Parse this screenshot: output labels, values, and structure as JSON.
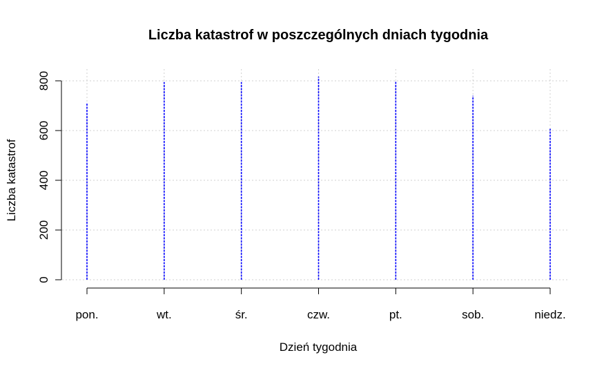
{
  "chart_data": {
    "type": "bar",
    "title": "Liczba katastrof w poszczególnych dniach tygodnia",
    "xlabel": "Dzień tygodnia",
    "ylabel": "Liczba katastrof",
    "categories": [
      "pon.",
      "wt.",
      "śr.",
      "czw.",
      "pt.",
      "sob.",
      "niedz."
    ],
    "values": [
      710,
      795,
      795,
      817,
      797,
      740,
      607
    ],
    "ylim": [
      0,
      800
    ],
    "yticks": [
      0,
      200,
      400,
      600,
      800
    ],
    "grid": true,
    "bar_color": "#0000ff"
  }
}
